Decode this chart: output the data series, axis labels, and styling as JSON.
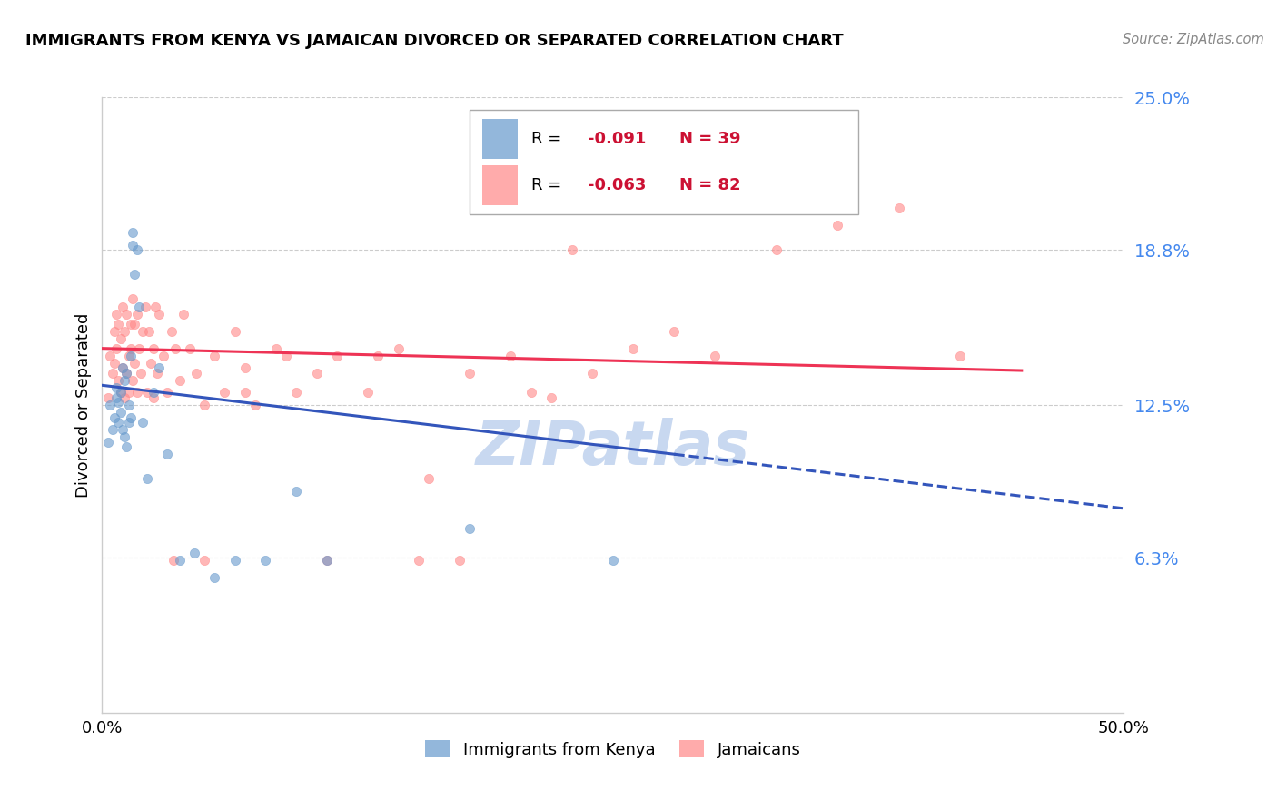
{
  "title": "IMMIGRANTS FROM KENYA VS JAMAICAN DIVORCED OR SEPARATED CORRELATION CHART",
  "source": "Source: ZipAtlas.com",
  "ylabel": "Divorced or Separated",
  "xlim": [
    0.0,
    0.5
  ],
  "ylim": [
    0.0,
    0.25
  ],
  "ytick_values": [
    0.063,
    0.125,
    0.188,
    0.25
  ],
  "ytick_labels": [
    "6.3%",
    "12.5%",
    "18.8%",
    "25.0%"
  ],
  "grid_color": "#cccccc",
  "background_color": "#ffffff",
  "watermark": "ZIPatlas",
  "watermark_color": "#c8d8f0",
  "legend_label1": "Immigrants from Kenya",
  "legend_label2": "Jamaicans",
  "R1": "-0.091",
  "N1": "39",
  "R2": "-0.063",
  "N2": "82",
  "color_kenya": "#6699cc",
  "color_jamaican": "#ff8888",
  "trend_color_kenya": "#3355bb",
  "trend_color_jamaican": "#ee3355",
  "kenya_x": [
    0.003,
    0.004,
    0.005,
    0.006,
    0.007,
    0.007,
    0.008,
    0.008,
    0.009,
    0.009,
    0.01,
    0.01,
    0.011,
    0.011,
    0.012,
    0.012,
    0.013,
    0.013,
    0.014,
    0.014,
    0.015,
    0.015,
    0.016,
    0.017,
    0.018,
    0.02,
    0.022,
    0.025,
    0.028,
    0.032,
    0.038,
    0.045,
    0.055,
    0.065,
    0.08,
    0.095,
    0.11,
    0.18,
    0.25
  ],
  "kenya_y": [
    0.11,
    0.125,
    0.115,
    0.12,
    0.128,
    0.132,
    0.118,
    0.126,
    0.122,
    0.13,
    0.115,
    0.14,
    0.112,
    0.135,
    0.108,
    0.138,
    0.125,
    0.118,
    0.145,
    0.12,
    0.19,
    0.195,
    0.178,
    0.188,
    0.165,
    0.118,
    0.095,
    0.13,
    0.14,
    0.105,
    0.062,
    0.065,
    0.055,
    0.062,
    0.062,
    0.09,
    0.062,
    0.075,
    0.062
  ],
  "jamaican_x": [
    0.003,
    0.004,
    0.005,
    0.006,
    0.006,
    0.007,
    0.007,
    0.008,
    0.008,
    0.009,
    0.009,
    0.01,
    0.01,
    0.011,
    0.011,
    0.012,
    0.012,
    0.013,
    0.013,
    0.014,
    0.014,
    0.015,
    0.015,
    0.016,
    0.016,
    0.017,
    0.017,
    0.018,
    0.019,
    0.02,
    0.021,
    0.022,
    0.023,
    0.024,
    0.025,
    0.026,
    0.027,
    0.028,
    0.03,
    0.032,
    0.034,
    0.036,
    0.038,
    0.04,
    0.043,
    0.046,
    0.05,
    0.055,
    0.06,
    0.065,
    0.07,
    0.075,
    0.085,
    0.095,
    0.105,
    0.115,
    0.13,
    0.145,
    0.16,
    0.18,
    0.2,
    0.22,
    0.24,
    0.26,
    0.28,
    0.3,
    0.33,
    0.36,
    0.39,
    0.42,
    0.23,
    0.21,
    0.195,
    0.175,
    0.155,
    0.135,
    0.11,
    0.09,
    0.07,
    0.05,
    0.035,
    0.025
  ],
  "jamaican_y": [
    0.128,
    0.145,
    0.138,
    0.155,
    0.142,
    0.148,
    0.162,
    0.135,
    0.158,
    0.13,
    0.152,
    0.14,
    0.165,
    0.128,
    0.155,
    0.138,
    0.162,
    0.145,
    0.13,
    0.158,
    0.148,
    0.135,
    0.168,
    0.142,
    0.158,
    0.13,
    0.162,
    0.148,
    0.138,
    0.155,
    0.165,
    0.13,
    0.155,
    0.142,
    0.148,
    0.165,
    0.138,
    0.162,
    0.145,
    0.13,
    0.155,
    0.148,
    0.135,
    0.162,
    0.148,
    0.138,
    0.125,
    0.145,
    0.13,
    0.155,
    0.14,
    0.125,
    0.148,
    0.13,
    0.138,
    0.145,
    0.13,
    0.148,
    0.095,
    0.138,
    0.145,
    0.128,
    0.138,
    0.148,
    0.155,
    0.145,
    0.188,
    0.198,
    0.205,
    0.145,
    0.188,
    0.13,
    0.225,
    0.062,
    0.062,
    0.145,
    0.062,
    0.145,
    0.13,
    0.062,
    0.062,
    0.128
  ]
}
